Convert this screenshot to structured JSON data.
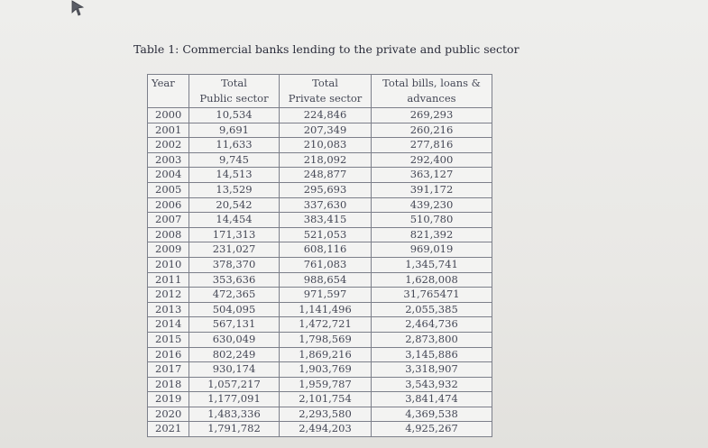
{
  "caption": "Table 1: Commercial banks lending to the private and public sector",
  "headers": {
    "year": "Year",
    "public_line1": "Total",
    "public_line2": "Public sector",
    "private_line1": "Total",
    "private_line2": "Private sector",
    "total_line1": "Total bills, loans &",
    "total_line2": "advances"
  },
  "rows": [
    {
      "year": "2000",
      "public": "10,534",
      "private": "224,846",
      "total": "269,293"
    },
    {
      "year": "2001",
      "public": "9,691",
      "private": "207,349",
      "total": "260,216"
    },
    {
      "year": "2002",
      "public": "11,633",
      "private": "210,083",
      "total": "277,816"
    },
    {
      "year": "2003",
      "public": "9,745",
      "private": "218,092",
      "total": "292,400"
    },
    {
      "year": "2004",
      "public": "14,513",
      "private": "248,877",
      "total": "363,127"
    },
    {
      "year": "2005",
      "public": "13,529",
      "private": "295,693",
      "total": "391,172"
    },
    {
      "year": "2006",
      "public": "20,542",
      "private": "337,630",
      "total": "439,230"
    },
    {
      "year": "2007",
      "public": "14,454",
      "private": "383,415",
      "total": "510,780"
    },
    {
      "year": "2008",
      "public": "171,313",
      "private": "521,053",
      "total": "821,392"
    },
    {
      "year": "2009",
      "public": "231,027",
      "private": "608,116",
      "total": "969,019"
    },
    {
      "year": "2010",
      "public": "378,370",
      "private": "761,083",
      "total": "1,345,741"
    },
    {
      "year": "2011",
      "public": "353,636",
      "private": "988,654",
      "total": "1,628,008"
    },
    {
      "year": "2012",
      "public": "472,365",
      "private": "971,597",
      "total": "31,765471"
    },
    {
      "year": "2013",
      "public": "504,095",
      "private": "1,141,496",
      "total": "2,055,385"
    },
    {
      "year": "2014",
      "public": "567,131",
      "private": "1,472,721",
      "total": "2,464,736"
    },
    {
      "year": "2015",
      "public": "630,049",
      "private": "1,798,569",
      "total": "2,873,800"
    },
    {
      "year": "2016",
      "public": "802,249",
      "private": "1,869,216",
      "total": "3,145,886"
    },
    {
      "year": "2017",
      "public": "930,174",
      "private": "1,903,769",
      "total": "3,318,907"
    },
    {
      "year": "2018",
      "public": "1,057,217",
      "private": "1,959,787",
      "total": "3,543,932"
    },
    {
      "year": "2019",
      "public": "1,177,091",
      "private": "2,101,754",
      "total": "3,841,474"
    },
    {
      "year": "2020",
      "public": "1,483,336",
      "private": "2,293,580",
      "total": "4,369,538"
    },
    {
      "year": "2021",
      "public": "1,791,782",
      "private": "2,494,203",
      "total": "4,925,267"
    }
  ]
}
